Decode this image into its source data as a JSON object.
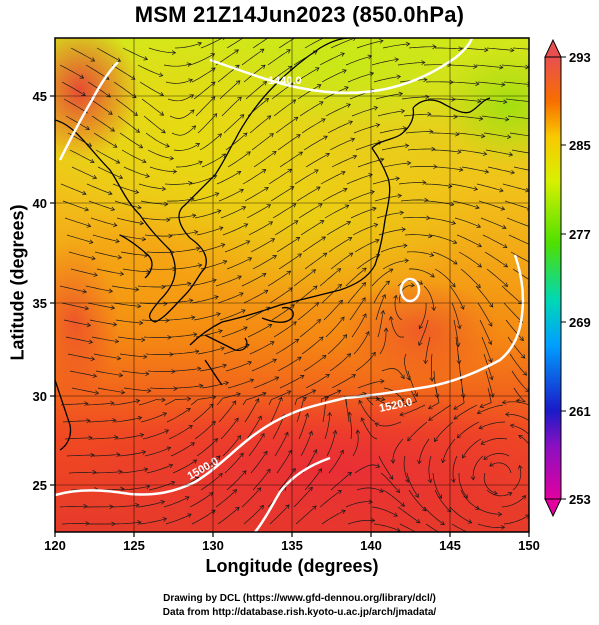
{
  "title": "MSM 21Z14Jun2023 (850.0hPa)",
  "map": {
    "xlabel": "Longitude (degrees)",
    "ylabel": "Latitude  (degrees)",
    "lon_range": [
      120,
      150
    ],
    "lat_range": [
      23,
      48
    ],
    "x_ticks": [
      "120",
      "125",
      "130",
      "135",
      "140",
      "145",
      "150"
    ],
    "y_ticks": [
      "25",
      "30",
      "35",
      "40",
      "45"
    ],
    "contour_labels": [
      "1440.0",
      "1520.0",
      "1500.0"
    ],
    "colorbar": {
      "ticks": [
        "293",
        "285",
        "277",
        "269",
        "261",
        "253"
      ],
      "range": [
        253,
        293
      ],
      "colors": [
        "#e2009f",
        "#1a1ac8",
        "#00a0ff",
        "#00d8b4",
        "#50e000",
        "#d8f000",
        "#f8c800",
        "#f86e00",
        "#f02828",
        "#e85050"
      ]
    }
  },
  "credits": {
    "line1": "Drawing by DCL (https://www.gfd-dennou.org/library/dcl/)",
    "line2": "Data from http://database.rish.kyoto-u.ac.jp/arch/jmadata/"
  }
}
